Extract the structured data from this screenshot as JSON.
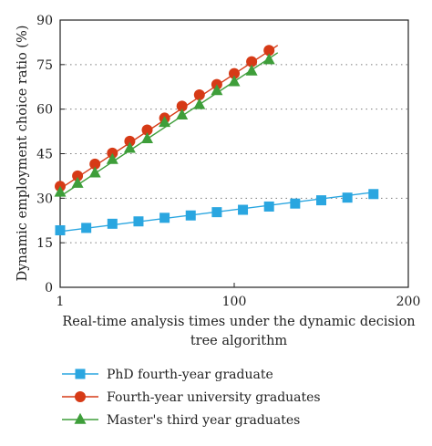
{
  "chart_data": {
    "type": "line",
    "title": "",
    "xlabel_lines": [
      "Real-time analysis times under the dynamic decision",
      "tree algorithm"
    ],
    "ylabel": "Dynamic employment choice ratio (%)",
    "xlim": [
      0,
      200
    ],
    "ylim": [
      0,
      90
    ],
    "xticks": [
      0,
      100,
      200
    ],
    "xtick_labels": [
      "1",
      "100",
      "200"
    ],
    "yticks": [
      0,
      15,
      30,
      45,
      60,
      75,
      90
    ],
    "grid": "horizontal-dotted",
    "legend_position": "bottom",
    "x": [
      0,
      10,
      20,
      30,
      40,
      50,
      60,
      70,
      80,
      90,
      100,
      110,
      120,
      130,
      140,
      150,
      160
    ],
    "series": [
      {
        "name": "PhD fourth-year graduate",
        "color": "#2aa6e0",
        "marker": "square",
        "values": [
          19.2,
          20.0,
          21.4,
          22.2,
          23.4,
          24.2,
          25.3,
          26.1,
          27.2,
          28.2,
          29.3,
          30.2,
          31.4
        ],
        "x": [
          0,
          15,
          30,
          45,
          60,
          75,
          90,
          105,
          120,
          135,
          150,
          165,
          180
        ],
        "fit": [
          [
            0,
            18.8
          ],
          [
            180,
            32.0
          ]
        ]
      },
      {
        "name": "Fourth-year university graduates",
        "color": "#d63a16",
        "marker": "circle",
        "values": [
          34.0,
          37.5,
          41.5,
          45.2,
          49.2,
          53.0,
          57.0,
          61.0,
          64.8,
          68.3,
          72.0,
          76.0,
          79.8
        ],
        "x": [
          0,
          10,
          20,
          30,
          40,
          50,
          60,
          70,
          80,
          90,
          100,
          110,
          120
        ],
        "fit": [
          [
            0,
            33.2
          ],
          [
            125,
            81.5
          ]
        ]
      },
      {
        "name": "Master's third year graduates",
        "color": "#3e9e3a",
        "marker": "triangle",
        "values": [
          32.0,
          35.0,
          38.5,
          43.0,
          46.8,
          50.0,
          55.5,
          58.0,
          61.5,
          66.2,
          69.2,
          72.8,
          76.6
        ],
        "x": [
          0,
          10,
          20,
          30,
          40,
          50,
          60,
          70,
          80,
          90,
          100,
          110,
          120
        ],
        "fit": [
          [
            0,
            30.6
          ],
          [
            125,
            79.0
          ]
        ]
      }
    ]
  }
}
